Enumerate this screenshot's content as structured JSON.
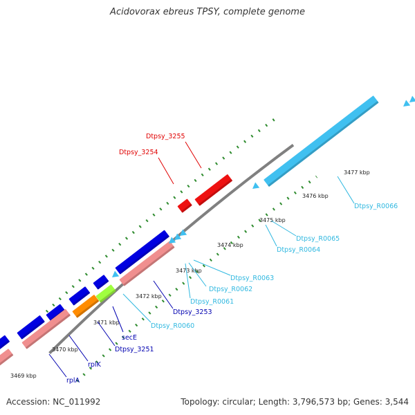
{
  "title": "Acidovorax ebreus TPSY, complete genome",
  "footer": {
    "accession": "Accession: NC_011992",
    "stats": "Topology: circular; Length: 3,796,573 bp; Genes: 3,544"
  },
  "ticks": [
    "3469 kbp",
    "3470 kbp",
    "3471 kbp",
    "3472 kbp",
    "3473 kbp",
    "3474 kbp",
    "3475 kbp",
    "3476 kbp",
    "3477 kbp"
  ],
  "colors": {
    "backbone": "#808080",
    "dots": "#2e8b2e",
    "protein_gene": "#0000e0",
    "protein_gene_rna": "#f08f8f",
    "rna_gene": "#40c0f0",
    "highlighted_gene": "#ee1111",
    "sec_gene": "#ff8c00",
    "green_gene": "#a0ff40"
  },
  "genes": [
    {
      "name": "rplA",
      "color": "#0000b0"
    },
    {
      "name": "rplK",
      "color": "#0000b0"
    },
    {
      "name": "Dtpsy_3251",
      "color": "#0000b0"
    },
    {
      "name": "secE",
      "color": "#0000b0"
    },
    {
      "name": "Dtpsy_R0060",
      "color": "#30b8e0"
    },
    {
      "name": "Dtpsy_3253",
      "color": "#0000b0"
    },
    {
      "name": "Dtpsy_R0061",
      "color": "#30b8e0"
    },
    {
      "name": "Dtpsy_R0062",
      "color": "#30b8e0"
    },
    {
      "name": "Dtpsy_R0063",
      "color": "#30b8e0"
    },
    {
      "name": "Dtpsy_R0064",
      "color": "#30b8e0"
    },
    {
      "name": "Dtpsy_R0065",
      "color": "#30b8e0"
    },
    {
      "name": "Dtpsy_R0066",
      "color": "#30b8e0"
    },
    {
      "name": "Dtpsy_3254",
      "color": "#e00000"
    },
    {
      "name": "Dtpsy_3255",
      "color": "#e00000"
    }
  ]
}
